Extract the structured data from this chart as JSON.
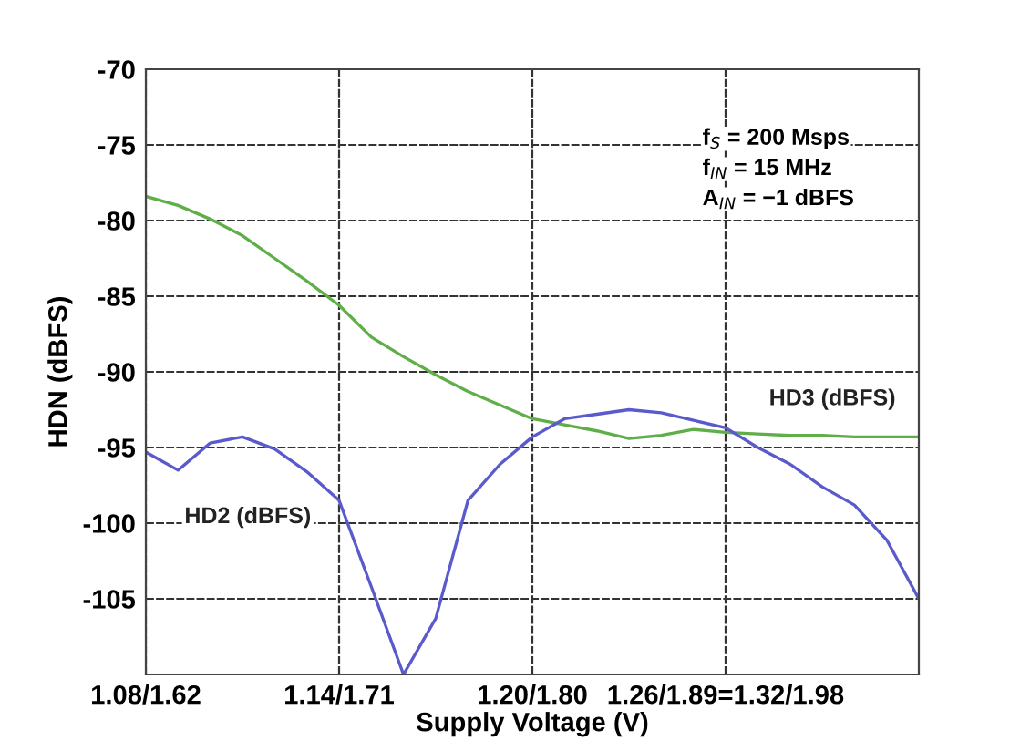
{
  "chart_data": {
    "type": "line",
    "xlabel": "Supply Voltage (V)",
    "ylabel": "HDN (dBFS)",
    "categories": [
      "1.08/1.62",
      null,
      null,
      null,
      null,
      null,
      "1.14/1.71",
      null,
      null,
      null,
      null,
      null,
      "1.20/1.80",
      null,
      null,
      null,
      null,
      null,
      "1.26/1.89=1.32/1.98",
      null,
      null,
      null,
      null,
      null,
      null
    ],
    "ylim": [
      -110,
      -70
    ],
    "yticks": [
      -70,
      -75,
      -80,
      -85,
      -90,
      -95,
      -100,
      -105,
      {
        "value": -110,
        "label": null
      }
    ],
    "grid": true,
    "annotations": [
      "f$_{S}$ = 200 Msps",
      "f$_{IN}$ = 15 MHz",
      "A$_{IN}$ = −1 dBFS"
    ],
    "series": [
      {
        "name": "HD3 (dBFS)",
        "color": "#5fae4a",
        "values": [
          -78.4,
          -79.0,
          -79.9,
          -81.0,
          -82.5,
          -84.0,
          -85.6,
          -87.7,
          -89.0,
          -90.2,
          -91.3,
          -92.2,
          -93.1,
          -93.5,
          -93.9,
          -94.4,
          -94.2,
          -93.8,
          -94.0,
          -94.1,
          -94.2,
          -94.2,
          -94.3,
          -94.3,
          -94.3
        ]
      },
      {
        "name": "HD2 (dBFS)",
        "color": "#5a5acc",
        "values": [
          -95.3,
          -96.5,
          -94.7,
          -94.3,
          -95.1,
          -96.6,
          -98.5,
          -104.2,
          -110,
          -106.3,
          -98.5,
          -96.1,
          -94.3,
          -93.1,
          -92.8,
          -92.5,
          -92.7,
          -93.2,
          -93.7,
          -95.0,
          -96.1,
          -97.6,
          -98.8,
          -101.1,
          -105.0
        ]
      }
    ]
  }
}
